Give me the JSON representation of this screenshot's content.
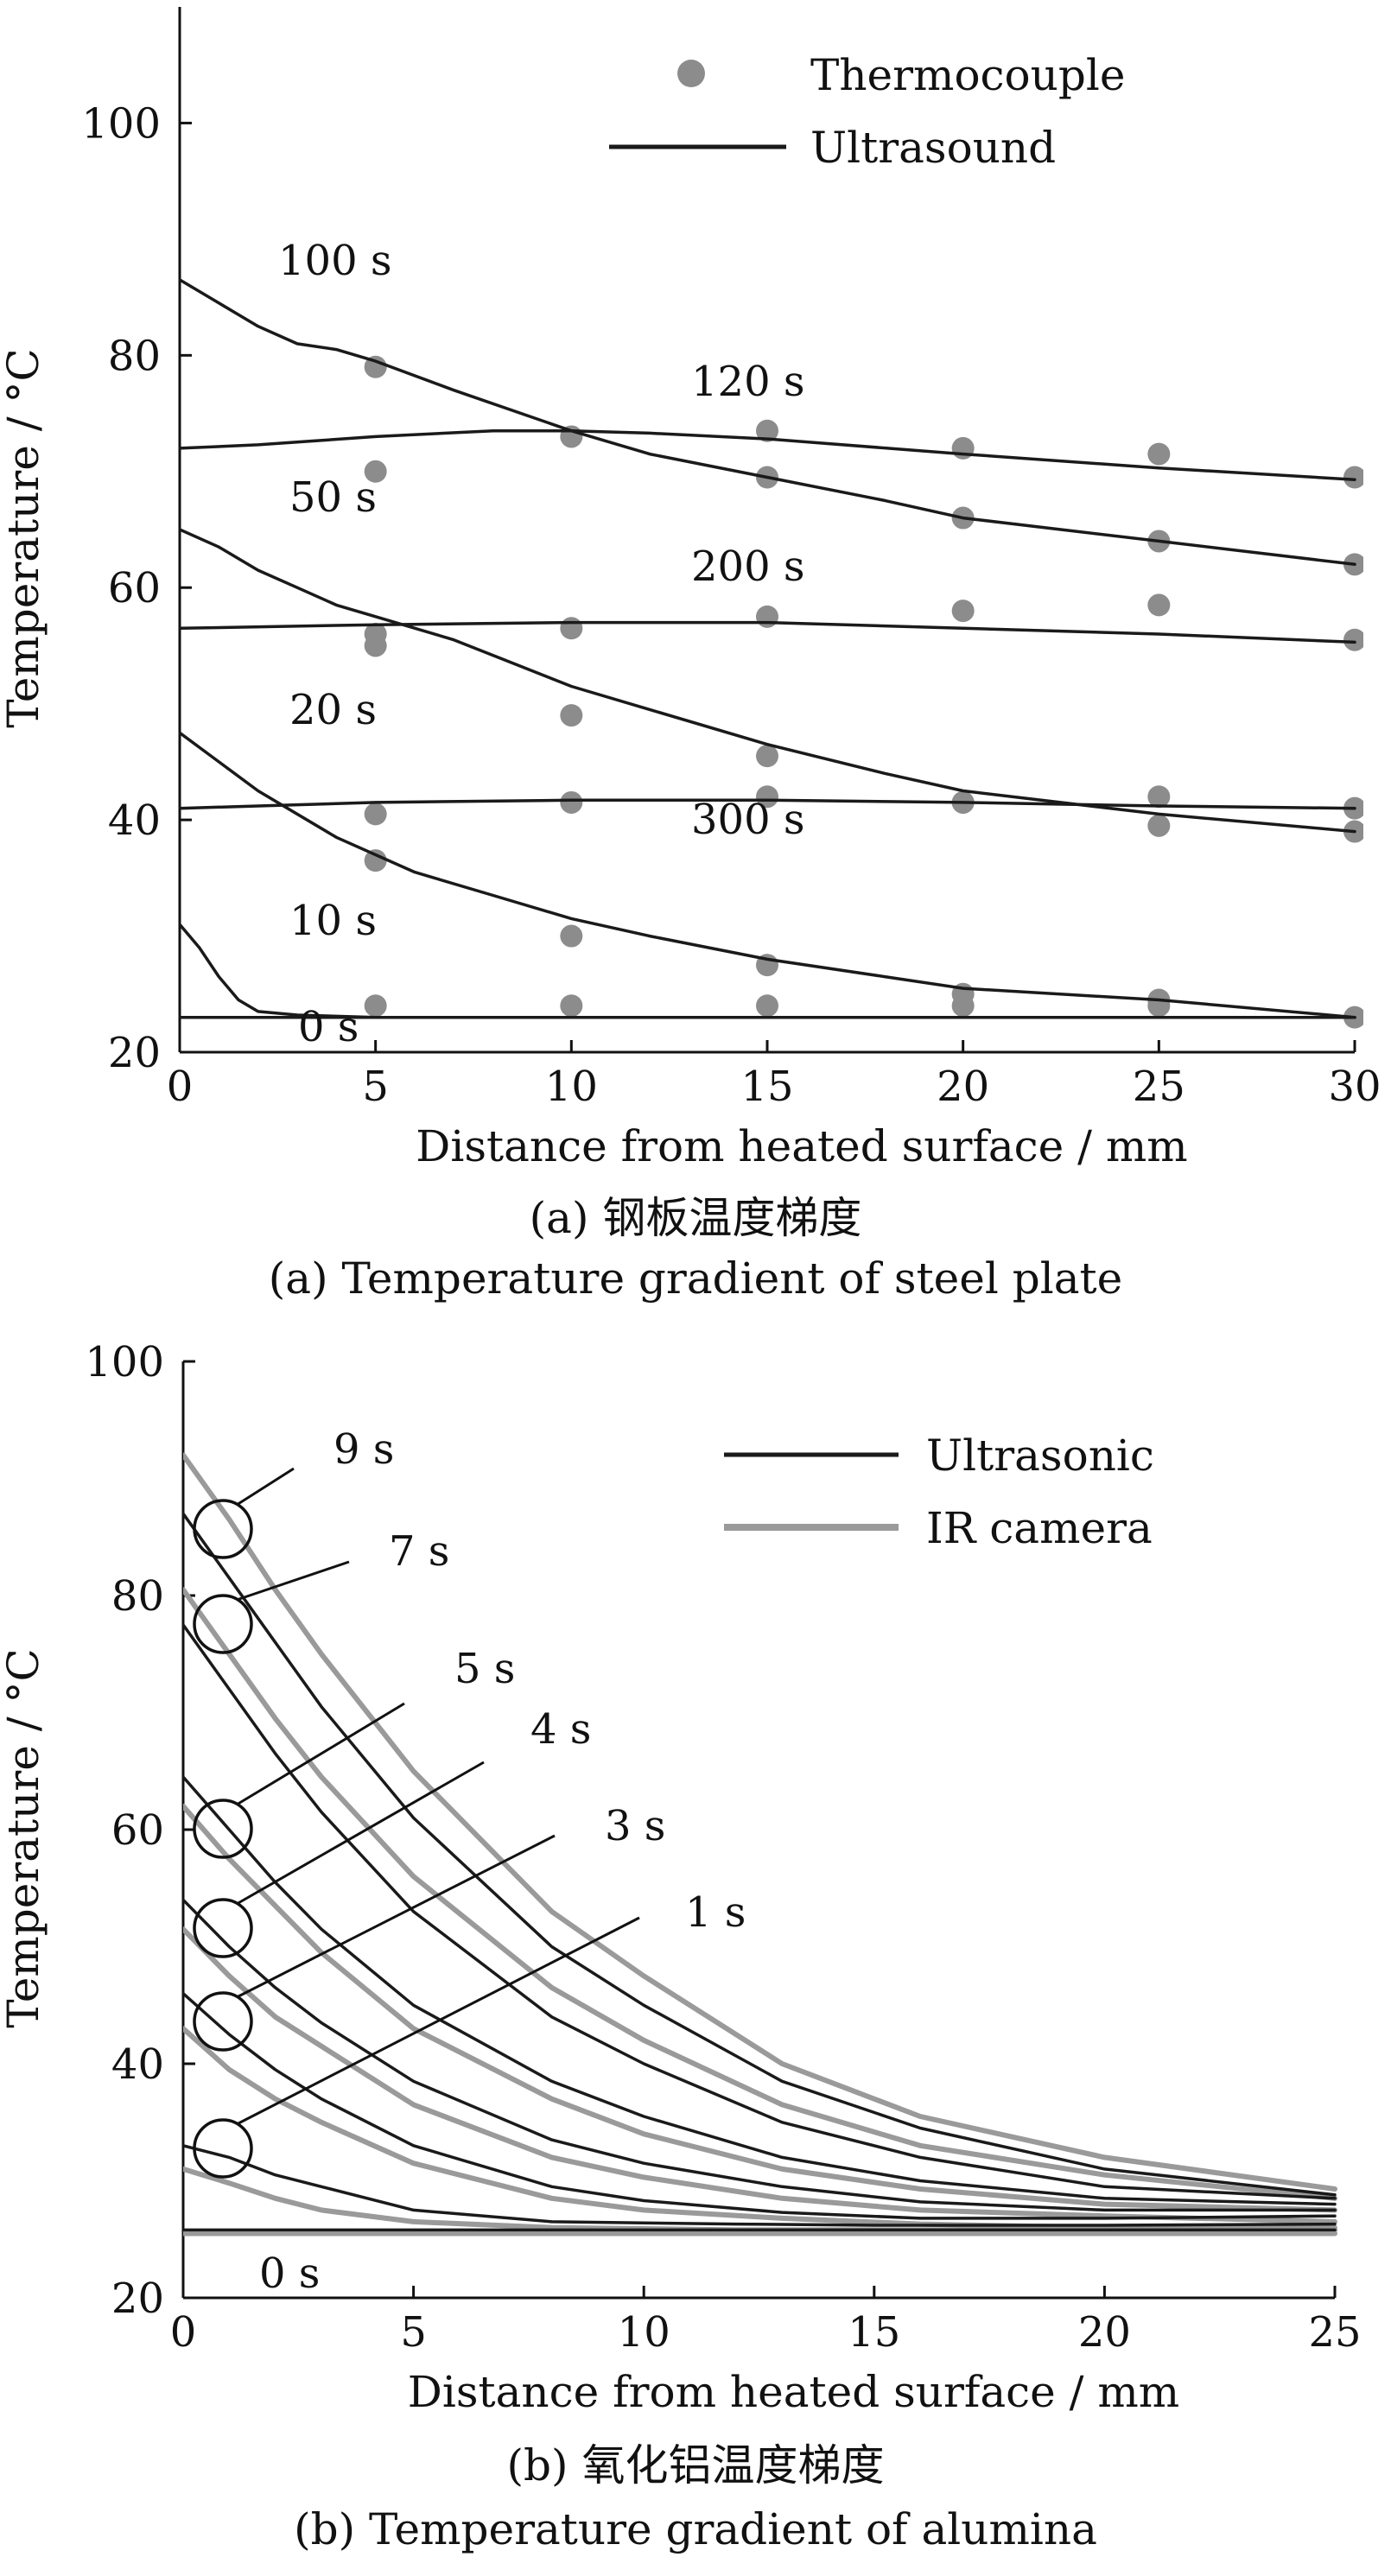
{
  "figure": {
    "captions": [
      "(a) 钢板温度梯度",
      "(a) Temperature gradient of steel plate",
      "(b) 氧化铝温度梯度",
      "(b) Temperature gradient of alumina"
    ]
  },
  "chart_data": [
    {
      "type": "line",
      "xlabel": "Distance from heated surface / mm",
      "ylabel": "Temperature / °C",
      "xlim": [
        0,
        30
      ],
      "ylim": [
        20,
        110
      ],
      "xticks": [
        0,
        5,
        10,
        15,
        20,
        25,
        30
      ],
      "yticks": [
        20,
        40,
        60,
        80,
        100
      ],
      "grid": false,
      "legend": {
        "position": "top-right",
        "entries": [
          {
            "name": "Thermocouple",
            "style": "marker",
            "color": "#8c8c8c"
          },
          {
            "name": "Ultrasound",
            "style": "line",
            "color": "#1a1a1a"
          }
        ]
      },
      "series": [
        {
          "label": "0 s",
          "method": "Ultrasound",
          "x": [
            0,
            5,
            10,
            15,
            20,
            25,
            30
          ],
          "y": [
            23,
            23,
            23,
            23,
            23,
            23,
            23
          ]
        },
        {
          "label": "10 s",
          "method": "Ultrasound",
          "x": [
            0,
            0.5,
            1,
            1.5,
            2,
            3,
            5,
            10,
            20,
            30
          ],
          "y": [
            31,
            29,
            26.5,
            24.5,
            23.5,
            23.2,
            23,
            23,
            23,
            23
          ]
        },
        {
          "label": "20 s",
          "method": "Ultrasound",
          "x": [
            0,
            2,
            4,
            6,
            8,
            10,
            12,
            15,
            18,
            20,
            25,
            30
          ],
          "y": [
            47.5,
            42.5,
            38.5,
            35.5,
            33.5,
            31.5,
            30,
            28,
            26.5,
            25.5,
            24.5,
            23
          ]
        },
        {
          "label": "50 s",
          "method": "Ultrasound",
          "x": [
            0,
            1,
            2,
            3,
            4,
            5,
            7,
            10,
            12,
            15,
            18,
            20,
            25,
            30
          ],
          "y": [
            65,
            63.5,
            61.5,
            60,
            58.5,
            57.5,
            55.5,
            51.5,
            49.5,
            46.5,
            44,
            42.5,
            40.5,
            39
          ]
        },
        {
          "label": "100 s",
          "method": "Ultrasound",
          "x": [
            0,
            1,
            2,
            3,
            4,
            5,
            7,
            10,
            12,
            15,
            18,
            20,
            25,
            30
          ],
          "y": [
            86.5,
            84.5,
            82.5,
            81,
            80.5,
            79.5,
            77,
            73.5,
            71.5,
            69.5,
            67.5,
            66,
            64,
            62
          ]
        },
        {
          "label": "120 s",
          "method": "Ultrasound",
          "x": [
            0,
            2,
            5,
            8,
            10,
            12,
            15,
            20,
            25,
            30
          ],
          "y": [
            72,
            72.3,
            73,
            73.5,
            73.5,
            73.3,
            72.8,
            71.5,
            70.3,
            69.3
          ]
        },
        {
          "label": "200 s",
          "method": "Ultrasound",
          "x": [
            0,
            5,
            10,
            15,
            20,
            25,
            30
          ],
          "y": [
            56.5,
            56.8,
            57,
            57,
            56.5,
            56,
            55.3
          ]
        },
        {
          "label": "300 s",
          "method": "Ultrasound",
          "x": [
            0,
            2,
            5,
            10,
            15,
            20,
            25,
            30
          ],
          "y": [
            41,
            41.2,
            41.5,
            41.7,
            41.7,
            41.5,
            41.2,
            41
          ]
        }
      ],
      "thermocouple_points": [
        {
          "x": 5,
          "y": 79
        },
        {
          "x": 10,
          "y": 73
        },
        {
          "x": 15,
          "y": 69.5
        },
        {
          "x": 20,
          "y": 66
        },
        {
          "x": 25,
          "y": 64
        },
        {
          "x": 30,
          "y": 62
        },
        {
          "x": 5,
          "y": 70
        },
        {
          "x": 15,
          "y": 73.5
        },
        {
          "x": 20,
          "y": 72
        },
        {
          "x": 25,
          "y": 71.5
        },
        {
          "x": 30,
          "y": 69.5
        },
        {
          "x": 5,
          "y": 55
        },
        {
          "x": 5,
          "y": 56
        },
        {
          "x": 10,
          "y": 56.5
        },
        {
          "x": 15,
          "y": 57.5
        },
        {
          "x": 20,
          "y": 58
        },
        {
          "x": 25,
          "y": 58.5
        },
        {
          "x": 30,
          "y": 55.5
        },
        {
          "x": 10,
          "y": 49
        },
        {
          "x": 15,
          "y": 45.5
        },
        {
          "x": 20,
          "y": 41.5
        },
        {
          "x": 25,
          "y": 39.5
        },
        {
          "x": 30,
          "y": 39
        },
        {
          "x": 5,
          "y": 40.5
        },
        {
          "x": 10,
          "y": 41.5
        },
        {
          "x": 15,
          "y": 42
        },
        {
          "x": 20,
          "y": 41.5
        },
        {
          "x": 25,
          "y": 42
        },
        {
          "x": 30,
          "y": 41
        },
        {
          "x": 5,
          "y": 36.5
        },
        {
          "x": 10,
          "y": 30
        },
        {
          "x": 15,
          "y": 27.5
        },
        {
          "x": 20,
          "y": 25
        },
        {
          "x": 25,
          "y": 24.5
        },
        {
          "x": 30,
          "y": 23
        },
        {
          "x": 5,
          "y": 24
        },
        {
          "x": 10,
          "y": 24
        },
        {
          "x": 15,
          "y": 24
        },
        {
          "x": 20,
          "y": 24
        },
        {
          "x": 25,
          "y": 24
        }
      ]
    },
    {
      "type": "line",
      "xlabel": "Distance from heated surface / mm",
      "ylabel": "Temperature / °C",
      "xlim": [
        0,
        25
      ],
      "ylim": [
        20,
        100
      ],
      "xticks": [
        0,
        5,
        10,
        15,
        20,
        25
      ],
      "yticks": [
        20,
        40,
        60,
        80,
        100
      ],
      "grid": false,
      "legend": {
        "position": "top-right",
        "entries": [
          {
            "name": "Ultrasonic",
            "style": "line",
            "color": "#1a1a1a"
          },
          {
            "name": "IR camera",
            "style": "line",
            "color": "#9a9a9a"
          }
        ]
      },
      "series": [
        {
          "label": "0 s",
          "method": "IR camera",
          "x": [
            0,
            5,
            10,
            15,
            20,
            25
          ],
          "y": [
            25.5,
            25.5,
            25.5,
            25.5,
            25.5,
            25.5
          ]
        },
        {
          "label": "0 s",
          "method": "Ultrasonic",
          "x": [
            0,
            5,
            10,
            15,
            20,
            25
          ],
          "y": [
            25.8,
            25.8,
            25.8,
            25.8,
            25.8,
            25.8
          ]
        },
        {
          "label": "1 s",
          "method": "Ultrasonic",
          "x": [
            0,
            1,
            2,
            3,
            5,
            8,
            12,
            15,
            20,
            25
          ],
          "y": [
            33,
            32,
            30.5,
            29.5,
            27.5,
            26.5,
            26.3,
            26.2,
            26.2,
            26.3
          ]
        },
        {
          "label": "1 s",
          "method": "IR camera",
          "x": [
            0,
            1,
            2,
            3,
            5,
            8,
            12,
            15,
            20,
            25
          ],
          "y": [
            31,
            29.8,
            28.5,
            27.5,
            26.5,
            26,
            25.8,
            25.8,
            25.8,
            25.8
          ]
        },
        {
          "label": "3 s",
          "method": "Ultrasonic",
          "x": [
            0,
            1,
            2,
            3,
            5,
            8,
            10,
            13,
            16,
            20,
            25
          ],
          "y": [
            46,
            42.5,
            39.5,
            37,
            33,
            29.5,
            28.3,
            27.3,
            26.8,
            26.8,
            27
          ]
        },
        {
          "label": "3 s",
          "method": "IR camera",
          "x": [
            0,
            1,
            2,
            3,
            5,
            8,
            10,
            13,
            16,
            20,
            25
          ],
          "y": [
            43,
            39.5,
            37,
            35,
            31.5,
            28.5,
            27.5,
            26.8,
            26.3,
            26,
            26
          ]
        },
        {
          "label": "4 s",
          "method": "Ultrasonic",
          "x": [
            0,
            1,
            2,
            3,
            5,
            8,
            10,
            13,
            16,
            20,
            25
          ],
          "y": [
            54,
            50,
            46.5,
            43.5,
            38.5,
            33.5,
            31.5,
            29.5,
            28.2,
            27.5,
            27.5
          ]
        },
        {
          "label": "4 s",
          "method": "IR camera",
          "x": [
            0,
            1,
            2,
            3,
            5,
            8,
            10,
            13,
            16,
            20,
            25
          ],
          "y": [
            51.5,
            47.5,
            44,
            41.5,
            36.5,
            32,
            30.3,
            28.5,
            27.5,
            27,
            26.5
          ]
        },
        {
          "label": "5 s",
          "method": "Ultrasonic",
          "x": [
            0,
            1,
            2,
            3,
            5,
            8,
            10,
            13,
            16,
            20,
            25
          ],
          "y": [
            64.5,
            60,
            55.5,
            51.5,
            45,
            38.5,
            35.5,
            32,
            30,
            28.5,
            28
          ]
        },
        {
          "label": "5 s",
          "method": "IR camera",
          "x": [
            0,
            1,
            2,
            3,
            5,
            8,
            10,
            13,
            16,
            20,
            25
          ],
          "y": [
            62,
            57.5,
            53.5,
            49.5,
            43,
            37,
            34,
            31,
            29.3,
            28,
            27.5
          ]
        },
        {
          "label": "7 s",
          "method": "Ultrasonic",
          "x": [
            0,
            1,
            2,
            3,
            5,
            8,
            10,
            13,
            16,
            20,
            25
          ],
          "y": [
            77.5,
            72,
            66.5,
            61.5,
            53,
            44,
            40,
            35,
            32,
            29.5,
            28.5
          ]
        },
        {
          "label": "7 s",
          "method": "IR camera",
          "x": [
            0,
            1,
            2,
            3,
            5,
            8,
            10,
            13,
            16,
            20,
            25
          ],
          "y": [
            80.5,
            75,
            69.5,
            64.5,
            56,
            46.5,
            42,
            36.5,
            33,
            30.5,
            28.5
          ]
        },
        {
          "label": "9 s",
          "method": "Ultrasonic",
          "x": [
            0,
            1,
            2,
            3,
            5,
            8,
            10,
            13,
            16,
            20,
            25
          ],
          "y": [
            87,
            81.5,
            76,
            70.5,
            61,
            50,
            45,
            38.5,
            34.5,
            31,
            28.8
          ]
        },
        {
          "label": "9 s",
          "method": "IR camera",
          "x": [
            0,
            1,
            2,
            3,
            5,
            8,
            10,
            13,
            16,
            20,
            25
          ],
          "y": [
            92,
            86.5,
            80.5,
            75,
            65,
            53,
            47.5,
            40,
            35.5,
            32,
            29.3
          ]
        }
      ]
    }
  ]
}
